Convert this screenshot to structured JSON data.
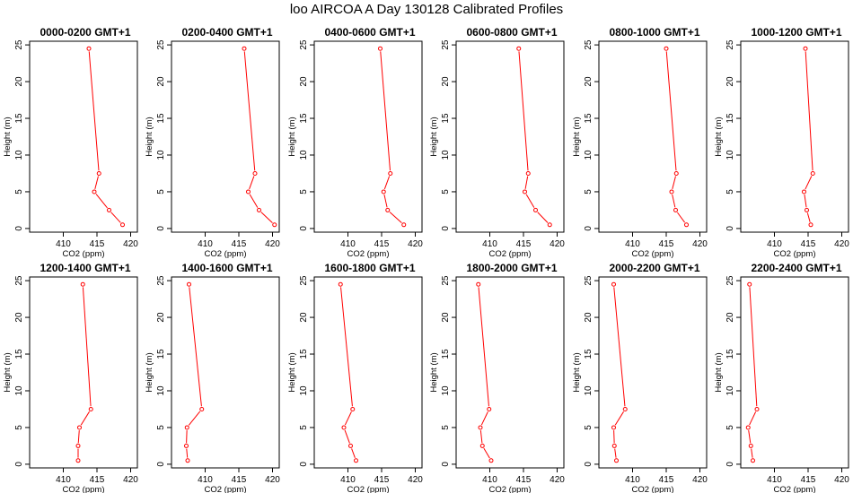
{
  "title": "loo AIRCOA A  Day 130128  Calibrated Profiles",
  "chart_data": [
    {
      "type": "line",
      "title": "0000-0200 GMT+1",
      "xlabel": "CO2 (ppm)",
      "ylabel": "Height (m)",
      "xlim": [
        405,
        421
      ],
      "ylim": [
        -0.5,
        25.5
      ],
      "xticks": [
        410,
        415,
        420
      ],
      "yticks": [
        0,
        5,
        10,
        15,
        20,
        25
      ],
      "series": [
        {
          "color": "#ff0000",
          "points": [
            {
              "x": 418.8,
              "y": 0.5
            },
            {
              "x": 416.8,
              "y": 2.5
            },
            {
              "x": 414.6,
              "y": 5
            },
            {
              "x": 415.3,
              "y": 7.5
            },
            {
              "x": 413.8,
              "y": 24.5
            }
          ]
        }
      ]
    },
    {
      "type": "line",
      "title": "0200-0400 GMT+1",
      "xlabel": "CO2 (ppm)",
      "ylabel": "Height (m)",
      "xlim": [
        405,
        421
      ],
      "ylim": [
        -0.5,
        25.5
      ],
      "xticks": [
        410,
        415,
        420
      ],
      "yticks": [
        0,
        5,
        10,
        15,
        20,
        25
      ],
      "series": [
        {
          "color": "#ff0000",
          "points": [
            {
              "x": 420.3,
              "y": 0.5
            },
            {
              "x": 418.0,
              "y": 2.5
            },
            {
              "x": 416.4,
              "y": 5
            },
            {
              "x": 417.4,
              "y": 7.5
            },
            {
              "x": 415.8,
              "y": 24.5
            }
          ]
        }
      ]
    },
    {
      "type": "line",
      "title": "0400-0600 GMT+1",
      "xlabel": "CO2 (ppm)",
      "ylabel": "Height (m)",
      "xlim": [
        405,
        421
      ],
      "ylim": [
        -0.5,
        25.5
      ],
      "xticks": [
        410,
        415,
        420
      ],
      "yticks": [
        0,
        5,
        10,
        15,
        20,
        25
      ],
      "series": [
        {
          "color": "#ff0000",
          "points": [
            {
              "x": 418.3,
              "y": 0.5
            },
            {
              "x": 415.9,
              "y": 2.5
            },
            {
              "x": 415.3,
              "y": 5
            },
            {
              "x": 416.3,
              "y": 7.5
            },
            {
              "x": 414.8,
              "y": 24.5
            }
          ]
        }
      ]
    },
    {
      "type": "line",
      "title": "0600-0800 GMT+1",
      "xlabel": "CO2 (ppm)",
      "ylabel": "Height (m)",
      "xlim": [
        405,
        421
      ],
      "ylim": [
        -0.5,
        25.5
      ],
      "xticks": [
        410,
        415,
        420
      ],
      "yticks": [
        0,
        5,
        10,
        15,
        20,
        25
      ],
      "series": [
        {
          "color": "#ff0000",
          "points": [
            {
              "x": 418.9,
              "y": 0.5
            },
            {
              "x": 416.8,
              "y": 2.5
            },
            {
              "x": 415.2,
              "y": 5
            },
            {
              "x": 415.7,
              "y": 7.5
            },
            {
              "x": 414.3,
              "y": 24.5
            }
          ]
        }
      ]
    },
    {
      "type": "line",
      "title": "0800-1000 GMT+1",
      "xlabel": "CO2 (ppm)",
      "ylabel": "Height (m)",
      "xlim": [
        405,
        421
      ],
      "ylim": [
        -0.5,
        25.5
      ],
      "xticks": [
        410,
        415,
        420
      ],
      "yticks": [
        0,
        5,
        10,
        15,
        20,
        25
      ],
      "series": [
        {
          "color": "#ff0000",
          "points": [
            {
              "x": 418.0,
              "y": 0.5
            },
            {
              "x": 416.4,
              "y": 2.5
            },
            {
              "x": 415.8,
              "y": 5
            },
            {
              "x": 416.5,
              "y": 7.5
            },
            {
              "x": 415.0,
              "y": 24.5
            }
          ]
        }
      ]
    },
    {
      "type": "line",
      "title": "1000-1200 GMT+1",
      "xlabel": "CO2 (ppm)",
      "ylabel": "Height (m)",
      "xlim": [
        405,
        421
      ],
      "ylim": [
        -0.5,
        25.5
      ],
      "xticks": [
        410,
        415,
        420
      ],
      "yticks": [
        0,
        5,
        10,
        15,
        20,
        25
      ],
      "series": [
        {
          "color": "#ff0000",
          "points": [
            {
              "x": 415.4,
              "y": 0.5
            },
            {
              "x": 414.8,
              "y": 2.5
            },
            {
              "x": 414.4,
              "y": 5
            },
            {
              "x": 415.7,
              "y": 7.5
            },
            {
              "x": 414.6,
              "y": 24.5
            }
          ]
        }
      ]
    },
    {
      "type": "line",
      "title": "1200-1400 GMT+1",
      "xlabel": "CO2 (ppm)",
      "ylabel": "Height (m)",
      "xlim": [
        405,
        421
      ],
      "ylim": [
        -0.5,
        25.5
      ],
      "xticks": [
        410,
        415,
        420
      ],
      "yticks": [
        0,
        5,
        10,
        15,
        20,
        25
      ],
      "series": [
        {
          "color": "#ff0000",
          "points": [
            {
              "x": 412.2,
              "y": 0.5
            },
            {
              "x": 412.2,
              "y": 2.5
            },
            {
              "x": 412.4,
              "y": 5
            },
            {
              "x": 414.1,
              "y": 7.5
            },
            {
              "x": 412.9,
              "y": 24.5
            }
          ]
        }
      ]
    },
    {
      "type": "line",
      "title": "1400-1600 GMT+1",
      "xlabel": "CO2 (ppm)",
      "ylabel": "Height (m)",
      "xlim": [
        405,
        421
      ],
      "ylim": [
        -0.5,
        25.5
      ],
      "xticks": [
        410,
        415,
        420
      ],
      "yticks": [
        0,
        5,
        10,
        15,
        20,
        25
      ],
      "series": [
        {
          "color": "#ff0000",
          "points": [
            {
              "x": 407.4,
              "y": 0.5
            },
            {
              "x": 407.2,
              "y": 2.5
            },
            {
              "x": 407.3,
              "y": 5
            },
            {
              "x": 409.5,
              "y": 7.5
            },
            {
              "x": 407.6,
              "y": 24.5
            }
          ]
        }
      ]
    },
    {
      "type": "line",
      "title": "1600-1800 GMT+1",
      "xlabel": "CO2 (ppm)",
      "ylabel": "Height (m)",
      "xlim": [
        405,
        421
      ],
      "ylim": [
        -0.5,
        25.5
      ],
      "xticks": [
        410,
        415,
        420
      ],
      "yticks": [
        0,
        5,
        10,
        15,
        20,
        25
      ],
      "series": [
        {
          "color": "#ff0000",
          "points": [
            {
              "x": 411.2,
              "y": 0.5
            },
            {
              "x": 410.4,
              "y": 2.5
            },
            {
              "x": 409.4,
              "y": 5
            },
            {
              "x": 410.7,
              "y": 7.5
            },
            {
              "x": 408.9,
              "y": 24.5
            }
          ]
        }
      ]
    },
    {
      "type": "line",
      "title": "1800-2000 GMT+1",
      "xlabel": "CO2 (ppm)",
      "ylabel": "Height (m)",
      "xlim": [
        405,
        421
      ],
      "ylim": [
        -0.5,
        25.5
      ],
      "xticks": [
        410,
        415,
        420
      ],
      "yticks": [
        0,
        5,
        10,
        15,
        20,
        25
      ],
      "series": [
        {
          "color": "#ff0000",
          "points": [
            {
              "x": 410.2,
              "y": 0.5
            },
            {
              "x": 408.9,
              "y": 2.5
            },
            {
              "x": 408.6,
              "y": 5
            },
            {
              "x": 409.9,
              "y": 7.5
            },
            {
              "x": 408.3,
              "y": 24.5
            }
          ]
        }
      ]
    },
    {
      "type": "line",
      "title": "2000-2200 GMT+1",
      "xlabel": "CO2 (ppm)",
      "ylabel": "Height (m)",
      "xlim": [
        405,
        421
      ],
      "ylim": [
        -0.5,
        25.5
      ],
      "xticks": [
        410,
        415,
        420
      ],
      "yticks": [
        0,
        5,
        10,
        15,
        20,
        25
      ],
      "series": [
        {
          "color": "#ff0000",
          "points": [
            {
              "x": 407.6,
              "y": 0.5
            },
            {
              "x": 407.3,
              "y": 2.5
            },
            {
              "x": 407.2,
              "y": 5
            },
            {
              "x": 408.9,
              "y": 7.5
            },
            {
              "x": 407.2,
              "y": 24.5
            }
          ]
        }
      ]
    },
    {
      "type": "line",
      "title": "2200-2400 GMT+1",
      "xlabel": "CO2 (ppm)",
      "ylabel": "Height (m)",
      "xlim": [
        405,
        421
      ],
      "ylim": [
        -0.5,
        25.5
      ],
      "xticks": [
        410,
        415,
        420
      ],
      "yticks": [
        0,
        5,
        10,
        15,
        20,
        25
      ],
      "series": [
        {
          "color": "#ff0000",
          "points": [
            {
              "x": 406.8,
              "y": 0.5
            },
            {
              "x": 406.5,
              "y": 2.5
            },
            {
              "x": 406.1,
              "y": 5
            },
            {
              "x": 407.4,
              "y": 7.5
            },
            {
              "x": 406.3,
              "y": 24.5
            }
          ]
        }
      ]
    }
  ]
}
